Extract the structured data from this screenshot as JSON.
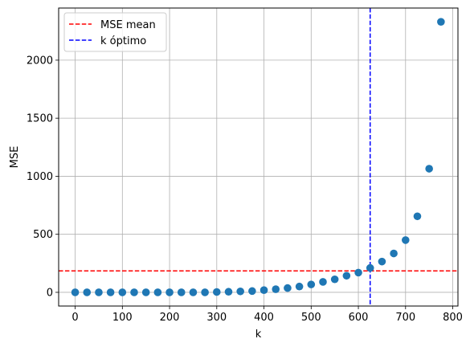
{
  "chart_data": {
    "type": "scatter",
    "title": "",
    "xlabel": "k",
    "ylabel": "MSE",
    "xlim": [
      -35,
      811
    ],
    "ylim": [
      -118,
      2449
    ],
    "x_ticks": [
      0,
      100,
      200,
      300,
      400,
      500,
      600,
      700,
      800
    ],
    "y_ticks": [
      0,
      500,
      1000,
      1500,
      2000
    ],
    "grid": true,
    "legend_position": "top-left",
    "marker_color": "#1f77b4",
    "points": {
      "x": [
        0,
        25,
        50,
        75,
        100,
        125,
        150,
        175,
        200,
        225,
        250,
        275,
        300,
        325,
        350,
        375,
        400,
        425,
        450,
        475,
        500,
        525,
        550,
        575,
        600,
        625,
        650,
        675,
        700,
        725,
        750,
        775
      ],
      "y": [
        0,
        0,
        0,
        0,
        0,
        0,
        0,
        0,
        0,
        0,
        0,
        0,
        3,
        5,
        8,
        11,
        19,
        27,
        37,
        50,
        68,
        90,
        112,
        143,
        170,
        210,
        265,
        335,
        450,
        655,
        1065,
        2330
      ]
    },
    "reference_lines": [
      {
        "name": "MSE mean",
        "orientation": "horizontal",
        "value": 185,
        "color": "#ff0000",
        "style": "dashed"
      },
      {
        "name": "k óptimo",
        "orientation": "vertical",
        "value": 625,
        "color": "#0000ff",
        "style": "dashed"
      }
    ]
  }
}
